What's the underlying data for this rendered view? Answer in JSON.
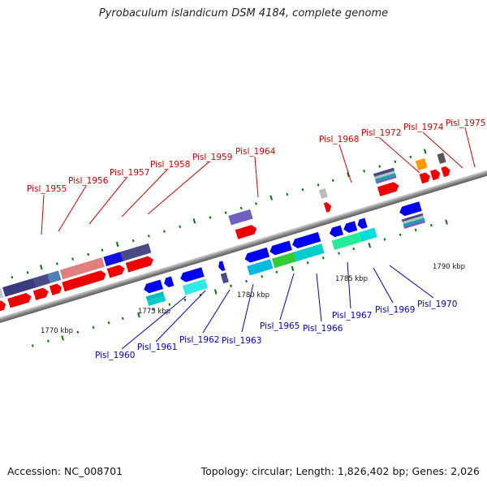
{
  "title": "Pyrobaculum islandicum DSM 4184, complete genome",
  "footer": {
    "accession": "Accession: NC_008701",
    "stats": "Topology: circular; Length: 1,826,402 bp; Genes: 2,026"
  },
  "colors": {
    "backbone": "#9a9a9a",
    "forward_gene": "#ff0000",
    "reverse_gene": "#0000ee",
    "top_label": "#cc0000",
    "bottom_label": "#0000bb",
    "tick": "#007700"
  },
  "scale_labels": [
    "1770 kbp",
    "1775 kbp",
    "1780 kbp",
    "1785 kbp",
    "1790 kbp"
  ],
  "top_gene_labels": [
    "Pisl_1955",
    "Pisl_1956",
    "Pisl_1957",
    "Pisl_1958",
    "Pisl_1959",
    "Pisl_1964",
    "Pisl_1968",
    "Pisl_1972",
    "Pisl_1974",
    "Pisl_1975"
  ],
  "bottom_gene_labels": [
    "Pisl_1960",
    "Pisl_1961",
    "Pisl_1962",
    "Pisl_1963",
    "Pisl_1965",
    "Pisl_1966",
    "Pisl_1967",
    "Pisl_1969",
    "Pisl_1970"
  ]
}
